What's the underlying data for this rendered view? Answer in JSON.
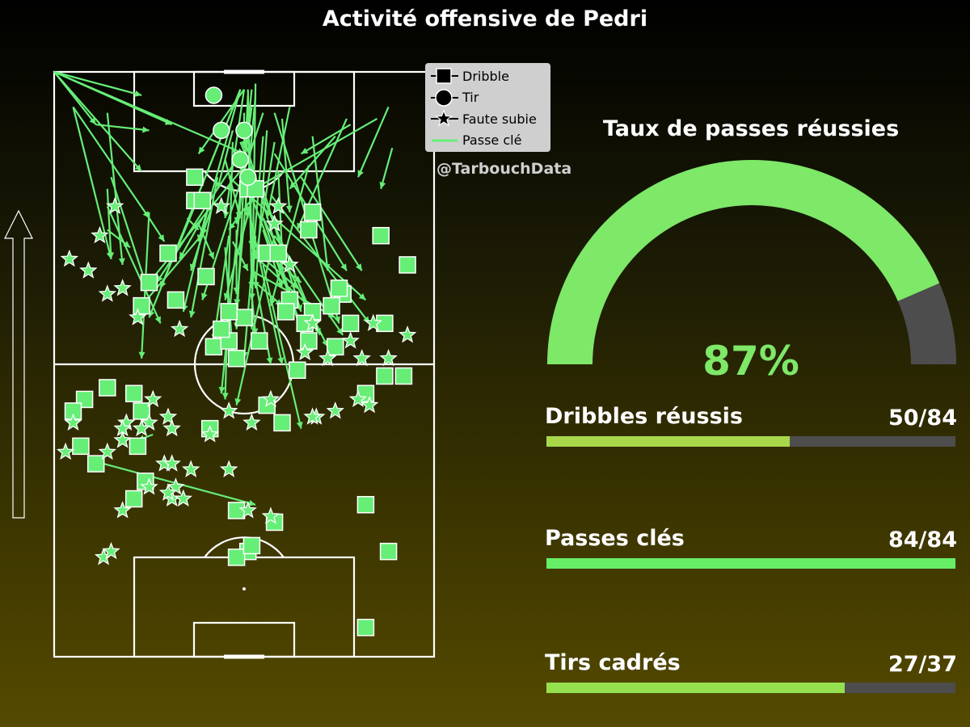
{
  "title": "Activité offensive de Pedri",
  "credit": "@TarbouchData",
  "legend": [
    {
      "label": "Dribble",
      "icon": "square-icon"
    },
    {
      "label": "Tir",
      "icon": "circle-icon"
    },
    {
      "label": "Faute subie",
      "icon": "star-icon"
    },
    {
      "label": "Passe clé",
      "icon": "line-icon"
    }
  ],
  "gauge": {
    "title": "Taux de passes réussies",
    "value_label": "87%",
    "fraction": 0.87,
    "fill_color": "#7ee868",
    "track_color": "#4d4d4d"
  },
  "stats": [
    {
      "label": "Dribbles réussis",
      "value_label": "50/84",
      "fraction": 0.595,
      "color": "#a8d84a"
    },
    {
      "label": "Passes clés",
      "value_label": "84/84",
      "fraction": 1.0,
      "color": "#66ee66"
    },
    {
      "label": "Tirs cadrés",
      "value_label": "27/37",
      "fraction": 0.73,
      "color": "#94e04e"
    }
  ],
  "chart_data": {
    "type": "scatter",
    "title": "Activité offensive de Pedri",
    "colors": {
      "marker": "#66ee77",
      "line": "#66ee77"
    },
    "pitch": {
      "length": 100,
      "width": 100
    },
    "dribbles": [
      [
        78,
        37
      ],
      [
        78,
        39
      ],
      [
        80,
        51
      ],
      [
        80,
        53
      ],
      [
        69,
        56
      ],
      [
        69,
        59
      ],
      [
        73,
        67
      ],
      [
        62,
        76
      ],
      [
        60,
        73
      ],
      [
        59,
        68
      ],
      [
        61,
        62
      ],
      [
        59,
        61
      ],
      [
        57,
        66
      ],
      [
        57,
        87
      ],
      [
        45,
        21
      ],
      [
        46,
        14
      ],
      [
        44,
        8
      ],
      [
        42,
        5
      ],
      [
        42,
        23
      ],
      [
        51,
        48
      ],
      [
        53,
        42
      ],
      [
        69,
        30
      ],
      [
        63,
        75
      ],
      [
        54,
        46
      ],
      [
        58,
        50
      ],
      [
        43,
        56
      ],
      [
        57,
        78
      ],
      [
        67,
        93
      ],
      [
        72,
        86
      ],
      [
        76,
        68
      ],
      [
        53,
        74
      ],
      [
        48,
        87
      ],
      [
        45,
        82
      ],
      [
        26,
        82
      ],
      [
        18,
        88
      ],
      [
        18,
        51
      ],
      [
        25,
        48
      ],
      [
        17,
        48
      ],
      [
        19,
        52
      ],
      [
        23,
        58
      ],
      [
        33,
        11
      ],
      [
        36,
        22
      ],
      [
        39,
        41
      ],
      [
        40,
        60
      ],
      [
        30,
        24
      ],
      [
        27,
        21
      ],
      [
        36,
        7
      ],
      [
        56,
        44
      ],
      [
        82,
        37
      ],
      [
        5,
        82
      ],
      [
        60,
        23
      ],
      [
        54,
        54
      ],
      [
        64,
        25
      ],
      [
        59,
        46
      ],
      [
        54,
        67
      ],
      [
        65,
        40
      ],
      [
        61,
        32
      ],
      [
        48,
        92
      ],
      [
        49,
        64
      ]
    ],
    "shots": [
      [
        96,
        42
      ],
      [
        90,
        44
      ],
      [
        90,
        50
      ],
      [
        82,
        51
      ],
      [
        85,
        49
      ]
    ],
    "fouls_suffered": [
      [
        68,
        4
      ],
      [
        66,
        9
      ],
      [
        40,
        5
      ],
      [
        35,
        3
      ],
      [
        25,
        18
      ],
      [
        27,
        31
      ],
      [
        29,
        32
      ],
      [
        32,
        36
      ],
      [
        29,
        25
      ],
      [
        17,
        13
      ],
      [
        18,
        15
      ],
      [
        24,
        57
      ],
      [
        25,
        51
      ],
      [
        28,
        30
      ],
      [
        27,
        34
      ],
      [
        40,
        19
      ],
      [
        41,
        30
      ],
      [
        44,
        26
      ],
      [
        39,
        18
      ],
      [
        33,
        29
      ],
      [
        42,
        46
      ],
      [
        40,
        52
      ],
      [
        38,
        41
      ],
      [
        40,
        25
      ],
      [
        41,
        69
      ],
      [
        43,
        83
      ],
      [
        44,
        57
      ],
      [
        51,
        81
      ],
      [
        51,
        72
      ],
      [
        52,
        66
      ],
      [
        54,
        78
      ],
      [
        55,
        93
      ],
      [
        57,
        68
      ],
      [
        57,
        84
      ],
      [
        56,
        33
      ],
      [
        58,
        22
      ],
      [
        62,
        14
      ],
      [
        63,
        18
      ],
      [
        67,
        62
      ],
      [
        72,
        12
      ],
      [
        77,
        44
      ],
      [
        77,
        59
      ],
      [
        74,
        58
      ],
      [
        77,
        16
      ],
      [
        44,
        80
      ],
      [
        42,
        74
      ],
      [
        51,
        88
      ],
      [
        41,
        68
      ],
      [
        39,
        23
      ],
      [
        35,
        14
      ],
      [
        37,
        18
      ],
      [
        39,
        31
      ],
      [
        33,
        31
      ],
      [
        32,
        46
      ]
    ],
    "key_passes": [
      [
        [
          100,
          0
        ],
        [
          83,
          23
        ]
      ],
      [
        [
          100,
          0
        ],
        [
          91,
          11
        ]
      ],
      [
        [
          100,
          0
        ],
        [
          91,
          31
        ]
      ],
      [
        [
          100,
          0
        ],
        [
          96,
          23
        ]
      ],
      [
        [
          100,
          0
        ],
        [
          86,
          50
        ]
      ],
      [
        [
          94,
          5
        ],
        [
          75,
          25
        ]
      ],
      [
        [
          94,
          5
        ],
        [
          68,
          15
        ]
      ],
      [
        [
          91,
          11
        ],
        [
          90,
          25
        ]
      ],
      [
        [
          97,
          49
        ],
        [
          71,
          38
        ]
      ],
      [
        [
          97,
          49
        ],
        [
          63,
          28
        ]
      ],
      [
        [
          97,
          49
        ],
        [
          58,
          25
        ]
      ],
      [
        [
          97,
          50
        ],
        [
          75,
          45
        ]
      ],
      [
        [
          97,
          50
        ],
        [
          86,
          38
        ]
      ],
      [
        [
          97,
          51
        ],
        [
          70,
          52
        ]
      ],
      [
        [
          96,
          51
        ],
        [
          56,
          48
        ]
      ],
      [
        [
          94,
          52
        ],
        [
          74,
          48
        ]
      ],
      [
        [
          93,
          55
        ],
        [
          61,
          39
        ]
      ],
      [
        [
          88,
          49
        ],
        [
          55,
          70
        ]
      ],
      [
        [
          93,
          50
        ],
        [
          87,
          50
        ]
      ],
      [
        [
          91,
          49
        ],
        [
          62,
          62
        ]
      ],
      [
        [
          90,
          56
        ],
        [
          63,
          53
        ]
      ],
      [
        [
          88,
          58
        ],
        [
          68,
          53
        ]
      ],
      [
        [
          87,
          47
        ],
        [
          55,
          66
        ]
      ],
      [
        [
          89,
          68
        ],
        [
          66,
          72
        ]
      ],
      [
        [
          89,
          55
        ],
        [
          51,
          50
        ]
      ],
      [
        [
          86,
          58
        ],
        [
          66,
          77
        ]
      ],
      [
        [
          88,
          47
        ],
        [
          44,
          45
        ]
      ],
      [
        [
          84,
          67
        ],
        [
          60,
          57
        ]
      ],
      [
        [
          82,
          65
        ],
        [
          66,
          81
        ]
      ],
      [
        [
          82,
          46
        ],
        [
          61,
          82
        ]
      ],
      [
        [
          79,
          57
        ],
        [
          57,
          83
        ]
      ],
      [
        [
          77,
          51
        ],
        [
          50,
          60
        ]
      ],
      [
        [
          75,
          55
        ],
        [
          53,
          72
        ]
      ],
      [
        [
          75,
          55
        ],
        [
          52,
          67
        ]
      ],
      [
        [
          73,
          55
        ],
        [
          63,
          60
        ]
      ],
      [
        [
          71,
          47
        ],
        [
          66,
          51
        ]
      ],
      [
        [
          71,
          52
        ],
        [
          64,
          65
        ]
      ],
      [
        [
          70,
          52
        ],
        [
          63,
          64
        ]
      ],
      [
        [
          68,
          52
        ],
        [
          50,
          57
        ]
      ],
      [
        [
          67,
          55
        ],
        [
          39,
          65
        ]
      ],
      [
        [
          72,
          58
        ],
        [
          55,
          76
        ]
      ],
      [
        [
          72,
          58
        ],
        [
          43,
          48
        ]
      ],
      [
        [
          72,
          53
        ],
        [
          61,
          52
        ]
      ],
      [
        [
          80,
          55
        ],
        [
          59,
          65
        ]
      ],
      [
        [
          73,
          48
        ],
        [
          62,
          48
        ]
      ],
      [
        [
          66,
          52
        ],
        [
          58,
          74
        ]
      ],
      [
        [
          64,
          53
        ],
        [
          60,
          60
        ]
      ],
      [
        [
          62,
          52
        ],
        [
          55,
          53
        ]
      ],
      [
        [
          70,
          45
        ],
        [
          52,
          47
        ]
      ],
      [
        [
          69,
          52
        ],
        [
          60,
          67
        ]
      ],
      [
        [
          83,
          49
        ],
        [
          64,
          25
        ]
      ],
      [
        [
          85,
          48
        ],
        [
          64,
          27
        ]
      ],
      [
        [
          80,
          54
        ],
        [
          73,
          46
        ]
      ],
      [
        [
          78,
          52
        ],
        [
          61,
          45
        ]
      ],
      [
        [
          82,
          43
        ],
        [
          58,
          36
        ]
      ],
      [
        [
          85,
          45
        ],
        [
          75,
          49
        ]
      ],
      [
        [
          93,
          14
        ],
        [
          67,
          18
        ]
      ],
      [
        [
          82,
          15
        ],
        [
          64,
          24
        ]
      ],
      [
        [
          80,
          14
        ],
        [
          68,
          15
        ]
      ],
      [
        [
          77,
          14
        ],
        [
          57,
          28
        ]
      ],
      [
        [
          73,
          14
        ],
        [
          70,
          20
        ]
      ],
      [
        [
          75,
          35
        ],
        [
          73,
          38
        ]
      ],
      [
        [
          75,
          39
        ],
        [
          68,
          33
        ]
      ],
      [
        [
          72,
          46
        ],
        [
          54,
          42
        ]
      ],
      [
        [
          78,
          41
        ],
        [
          59,
          34
        ]
      ],
      [
        [
          77,
          37
        ],
        [
          63,
          28
        ]
      ],
      [
        [
          74,
          38
        ],
        [
          68,
          42
        ]
      ],
      [
        [
          73,
          40
        ],
        [
          60,
          23
        ]
      ],
      [
        [
          78,
          42
        ],
        [
          66,
          36
        ]
      ],
      [
        [
          98,
          53
        ],
        [
          56,
          52
        ]
      ],
      [
        [
          97,
          52
        ],
        [
          45,
          44
        ]
      ],
      [
        [
          96,
          53
        ],
        [
          60,
          48
        ]
      ],
      [
        [
          93,
          58
        ],
        [
          57,
          75
        ]
      ],
      [
        [
          95,
          51
        ],
        [
          63,
          52
        ]
      ],
      [
        [
          76,
          25
        ],
        [
          51,
          23
        ]
      ],
      [
        [
          76,
          24
        ],
        [
          71,
          29
        ]
      ],
      [
        [
          33,
          13
        ],
        [
          26,
          53
        ]
      ],
      [
        [
          38,
          26
        ],
        [
          37,
          22
        ]
      ],
      [
        [
          92,
          85
        ],
        [
          79,
          50
        ]
      ],
      [
        [
          94,
          88
        ],
        [
          82,
          80
        ]
      ],
      [
        [
          87,
          89
        ],
        [
          80,
          86
        ]
      ],
      [
        [
          92,
          77
        ],
        [
          73,
          64
        ]
      ],
      [
        [
          91,
          78
        ],
        [
          86,
          65
        ]
      ],
      [
        [
          89,
          74
        ],
        [
          80,
          62
        ]
      ],
      [
        [
          83,
          59
        ],
        [
          69,
          60
        ]
      ],
      [
        [
          92,
          60
        ],
        [
          76,
          62
        ]
      ],
      [
        [
          86,
          49
        ],
        [
          75,
          51
        ]
      ],
      [
        [
          90,
          47
        ],
        [
          80,
          43
        ]
      ],
      [
        [
          94,
          62
        ],
        [
          75,
          56
        ]
      ]
    ]
  }
}
